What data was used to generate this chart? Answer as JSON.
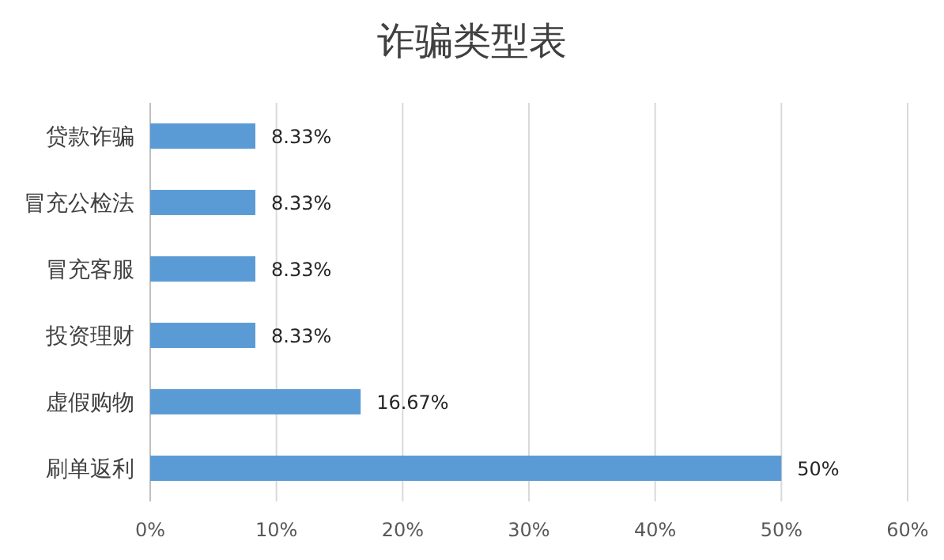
{
  "chart_data": {
    "type": "bar",
    "orientation": "horizontal",
    "title": "诈骗类型表",
    "categories": [
      "贷款诈骗",
      "冒充公检法",
      "冒充客服",
      "投资理财",
      "虚假购物",
      "刷单返利"
    ],
    "values": [
      8.33,
      8.33,
      8.33,
      8.33,
      16.67,
      50
    ],
    "value_labels": [
      "8.33%",
      "8.33%",
      "8.33%",
      "8.33%",
      "16.67%",
      "50%"
    ],
    "color": "#5b9bd5",
    "xlim": [
      0,
      60
    ],
    "xticks": [
      {
        "value": 0,
        "label": "0%"
      },
      {
        "value": 10,
        "label": "10%"
      },
      {
        "value": 20,
        "label": "20%"
      },
      {
        "value": 30,
        "label": "30%"
      },
      {
        "value": 40,
        "label": "40%"
      },
      {
        "value": 50,
        "label": "50%"
      },
      {
        "value": 60,
        "label": "60%"
      }
    ],
    "grid": "x"
  }
}
